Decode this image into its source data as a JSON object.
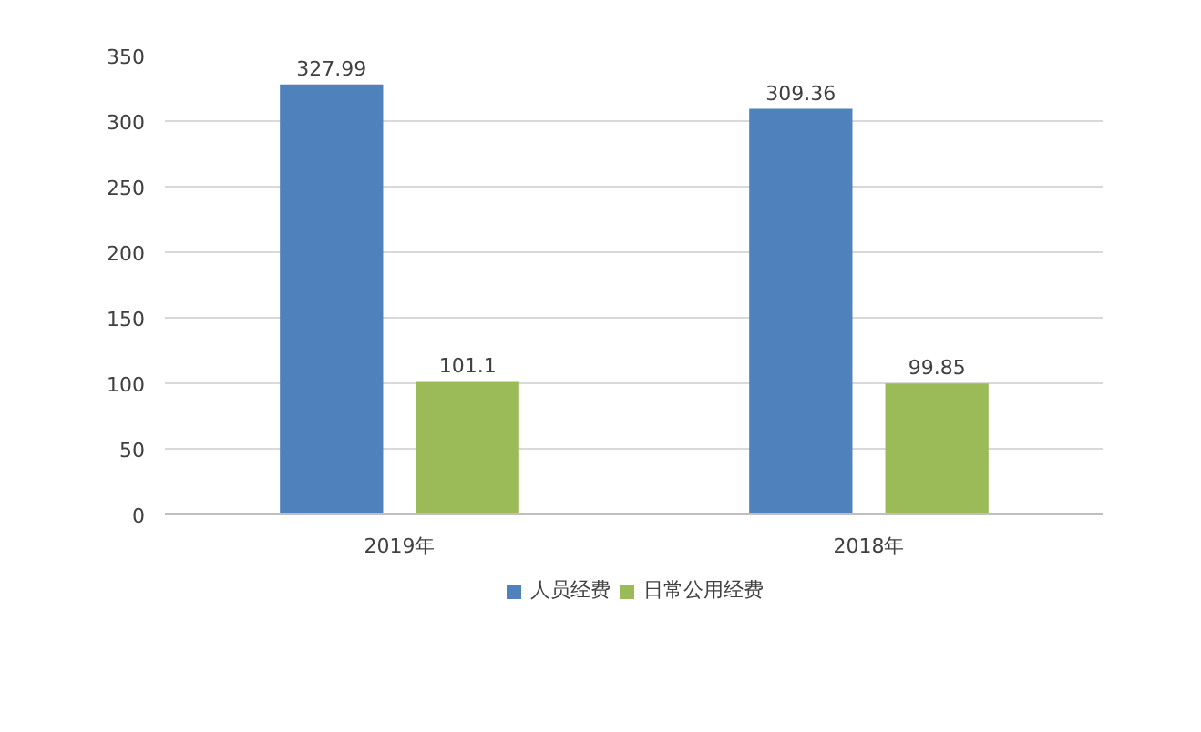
{
  "chart_data": {
    "type": "bar",
    "categories": [
      "2019年",
      "2018年"
    ],
    "series": [
      {
        "name": "人员经费",
        "color": "#4f81bd",
        "values": [
          327.99,
          309.36
        ]
      },
      {
        "name": "日常公用经费",
        "color": "#9bbb59",
        "values": [
          101.1,
          99.85
        ]
      }
    ],
    "ylim": [
      0,
      350
    ],
    "yticks": [
      0,
      50,
      100,
      150,
      200,
      250,
      300,
      350
    ],
    "grid": "y",
    "legend": "bottom",
    "data_labels": true
  }
}
